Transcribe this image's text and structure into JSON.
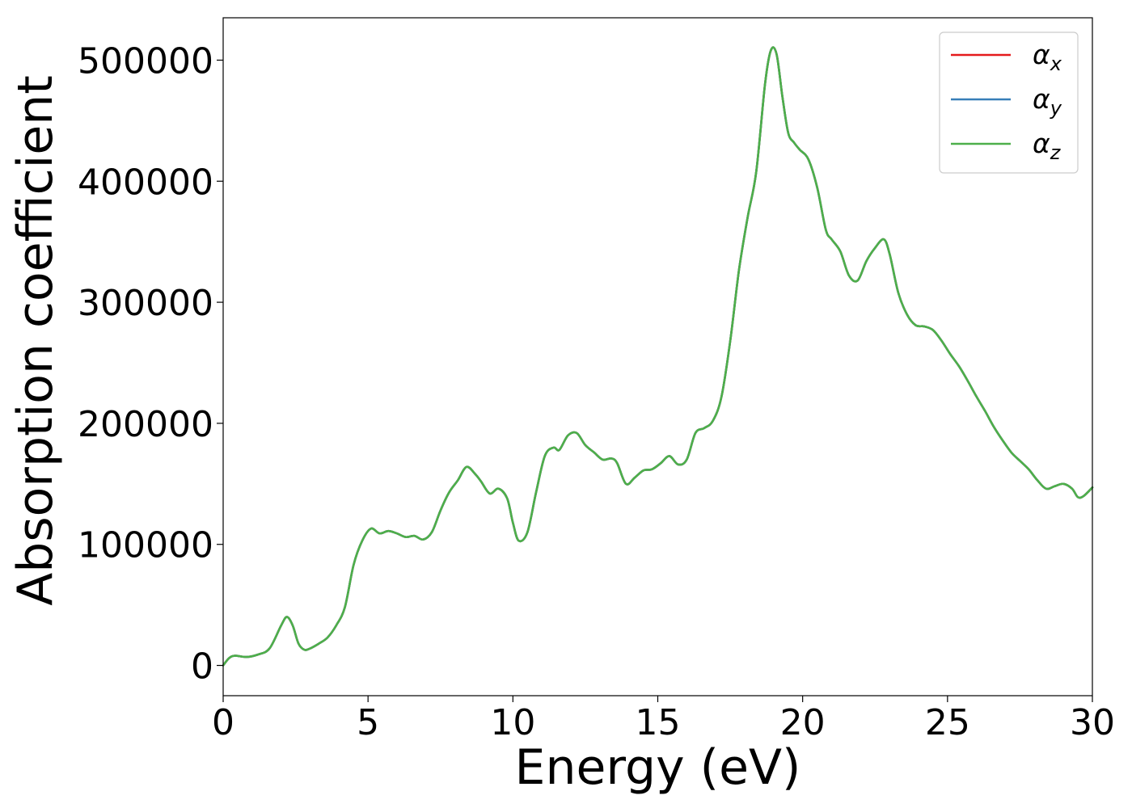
{
  "chart_data": {
    "type": "line",
    "title": "",
    "xlabel": "Energy (eV)",
    "ylabel": "Absorption coefficient",
    "xlim": [
      0,
      30
    ],
    "ylim": [
      -25000,
      535000
    ],
    "xticks": [
      0,
      5,
      10,
      15,
      20,
      25,
      30
    ],
    "yticks": [
      0,
      100000,
      200000,
      300000,
      400000,
      500000
    ],
    "grid": false,
    "legend_position": "top-right",
    "series": [
      {
        "name": "α",
        "subscript": "x",
        "color": "#e41a1c"
      },
      {
        "name": "α",
        "subscript": "y",
        "color": "#377eb8"
      },
      {
        "name": "α",
        "subscript": "z",
        "color": "#4daf4a"
      }
    ],
    "x": [
      0,
      0.2,
      0.4,
      0.8,
      1.2,
      1.6,
      2.0,
      2.2,
      2.4,
      2.6,
      2.8,
      3.0,
      3.3,
      3.6,
      3.9,
      4.2,
      4.5,
      4.8,
      5.1,
      5.4,
      5.7,
      6.0,
      6.3,
      6.6,
      6.9,
      7.2,
      7.5,
      7.8,
      8.1,
      8.4,
      8.7,
      8.9,
      9.2,
      9.5,
      9.8,
      10.0,
      10.2,
      10.5,
      10.8,
      11.1,
      11.4,
      11.6,
      11.9,
      12.2,
      12.5,
      12.8,
      13.1,
      13.4,
      13.6,
      13.9,
      14.2,
      14.5,
      14.8,
      15.1,
      15.4,
      15.7,
      16.0,
      16.3,
      16.6,
      16.9,
      17.2,
      17.5,
      17.8,
      18.1,
      18.4,
      18.7,
      18.9,
      19.1,
      19.3,
      19.5,
      19.7,
      19.9,
      20.2,
      20.5,
      20.8,
      21.0,
      21.3,
      21.6,
      21.9,
      22.2,
      22.5,
      22.8,
      23.0,
      23.3,
      23.6,
      23.9,
      24.2,
      24.5,
      24.8,
      25.1,
      25.4,
      25.7,
      26.0,
      26.3,
      26.6,
      26.9,
      27.2,
      27.5,
      27.8,
      28.1,
      28.4,
      28.7,
      29.0,
      29.3,
      29.5,
      29.7,
      30.0
    ],
    "y": [
      0,
      6000,
      8000,
      7000,
      9000,
      14000,
      33000,
      40000,
      33000,
      18000,
      13000,
      14000,
      18000,
      23000,
      33000,
      48000,
      83000,
      103000,
      113000,
      109000,
      111000,
      109000,
      106000,
      107000,
      104000,
      110000,
      128000,
      143000,
      153000,
      164000,
      158000,
      152000,
      142000,
      146000,
      138000,
      118000,
      103000,
      110000,
      143000,
      173000,
      180000,
      178000,
      190000,
      192000,
      182000,
      176000,
      170000,
      171000,
      167000,
      150000,
      155000,
      161000,
      162000,
      167000,
      173000,
      166000,
      170000,
      192000,
      196000,
      202000,
      222000,
      268000,
      326000,
      370000,
      408000,
      480000,
      508000,
      505000,
      470000,
      440000,
      432000,
      426000,
      418000,
      395000,
      360000,
      352000,
      342000,
      322000,
      318000,
      334000,
      345000,
      352000,
      340000,
      308000,
      290000,
      281000,
      280000,
      277000,
      268000,
      257000,
      247000,
      235000,
      222000,
      210000,
      197000,
      186000,
      176000,
      169000,
      162000,
      153000,
      146000,
      148000,
      150000,
      146000,
      139000,
      140000,
      147000
    ]
  }
}
